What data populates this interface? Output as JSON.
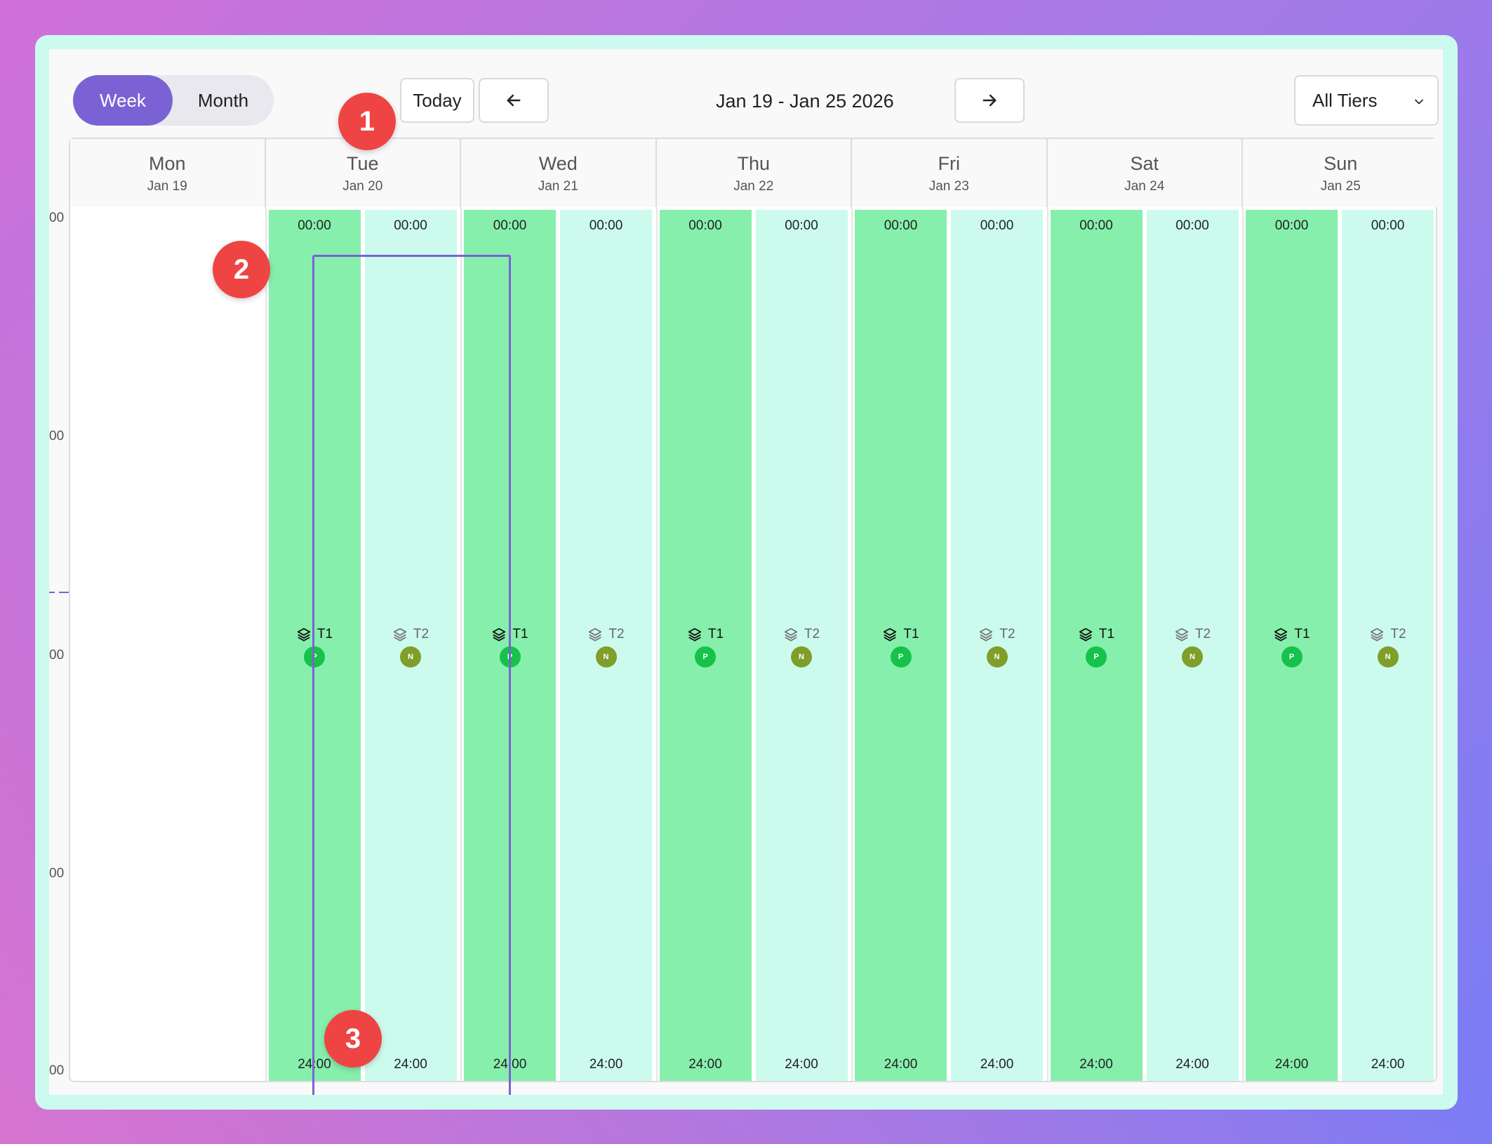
{
  "toolbar": {
    "view_week": "Week",
    "view_month": "Month",
    "today": "Today",
    "range": "Jan 19 - Jan 25 2026",
    "tier_filter": "All Tiers"
  },
  "y_labels": [
    "00",
    "00",
    "00",
    "00",
    "00"
  ],
  "days": [
    {
      "name": "Mon",
      "date": "Jan 19"
    },
    {
      "name": "Tue",
      "date": "Jan 20"
    },
    {
      "name": "Wed",
      "date": "Jan 21"
    },
    {
      "name": "Thu",
      "date": "Jan 22"
    },
    {
      "name": "Fri",
      "date": "Jan 23"
    },
    {
      "name": "Sat",
      "date": "Jan 24"
    },
    {
      "name": "Sun",
      "date": "Jan 25"
    }
  ],
  "slot": {
    "start": "00:00",
    "end": "24:00",
    "t1_label": "T1",
    "t2_label": "T2",
    "t1_badge": "P",
    "t2_badge": "N"
  },
  "badges": [
    "1",
    "2",
    "3"
  ],
  "colors": {
    "accent": "#7b62d4",
    "tier1": "#86efac",
    "tier2": "#ccfbee",
    "badge_p": "#16c24a",
    "badge_n": "#7f9e2a",
    "callout": "#ef4444"
  }
}
